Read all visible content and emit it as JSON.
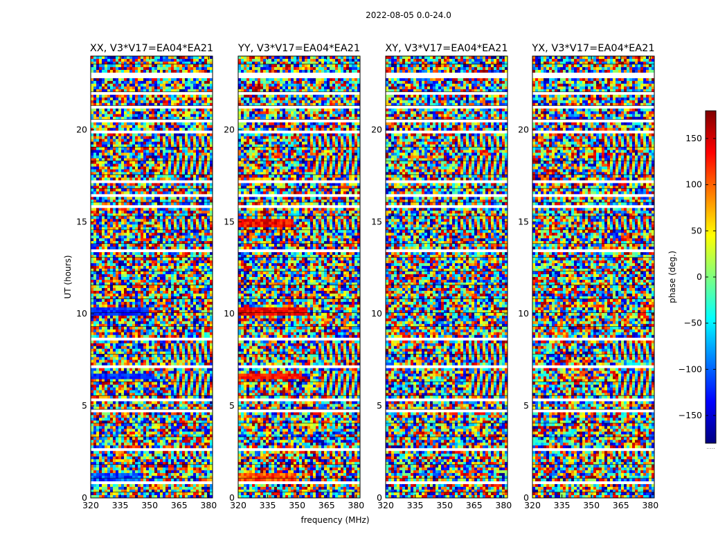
{
  "figure": {
    "suptitle": "2022-08-05 0.0-24.0"
  },
  "colors": {
    "jet": [
      "#00007f",
      "#0000ff",
      "#007fff",
      "#00ffff",
      "#7fff7f",
      "#ffff00",
      "#ff7f00",
      "#ff0000",
      "#7f0000"
    ],
    "masked_row": "#ffffff",
    "separator": "#000000"
  },
  "chart_data": {
    "type": "heatmap",
    "xlabel": "frequency (MHz)",
    "ylabel": "UT (hours)",
    "xlim": [
      320,
      382
    ],
    "ylim": [
      0,
      24
    ],
    "xticks": [
      "320",
      "335",
      "350",
      "365",
      "380"
    ],
    "xtick_values": [
      320,
      335,
      350,
      365,
      380
    ],
    "yticks": [
      "0",
      "5",
      "10",
      "15",
      "20"
    ],
    "ytick_values": [
      0,
      5,
      10,
      15,
      20
    ],
    "panels": [
      {
        "title": "XX, V3*V17=EA04*EA21",
        "bias": "blue"
      },
      {
        "title": "YY, V3*V17=EA04*EA21",
        "bias": "red"
      },
      {
        "title": "XY, V3*V17=EA04*EA21",
        "bias": "none"
      },
      {
        "title": "YX, V3*V17=EA04*EA21",
        "bias": "none"
      }
    ],
    "masked_hours": [
      [
        0.75,
        0.95
      ],
      [
        1.45,
        1.55
      ],
      [
        2.55,
        2.75
      ],
      [
        3.85,
        3.95
      ],
      [
        4.65,
        4.8
      ],
      [
        5.3,
        5.4
      ],
      [
        7.05,
        7.15
      ],
      [
        8.55,
        8.65
      ],
      [
        13.3,
        13.45
      ],
      [
        15.75,
        15.9
      ],
      [
        16.4,
        16.5
      ],
      [
        17.15,
        17.25
      ],
      [
        19.8,
        20.0
      ],
      [
        20.45,
        20.55
      ],
      [
        21.1,
        21.25
      ],
      [
        21.85,
        22.1
      ],
      [
        22.85,
        23.05
      ],
      [
        23.5,
        23.6
      ]
    ],
    "fringe_bands": [
      {
        "start": 2.2,
        "end": 2.6,
        "f_from": 360,
        "tilt": 1
      },
      {
        "start": 5.6,
        "end": 6.7,
        "f_from": 362,
        "tilt": -1
      },
      {
        "start": 7.5,
        "end": 8.4,
        "f_from": 360,
        "tilt": 1
      },
      {
        "start": 14.6,
        "end": 15.1,
        "f_from": 355,
        "tilt": 1
      },
      {
        "start": 17.5,
        "end": 18.6,
        "f_from": 358,
        "tilt": -1
      },
      {
        "start": 19.0,
        "end": 19.7,
        "f_from": 355,
        "tilt": 1
      }
    ],
    "colorbar": {
      "label": "phase (deg.)",
      "range": [
        -180,
        180
      ],
      "ticks": [
        "150",
        "100",
        "50",
        "0",
        "−50",
        "−100",
        "−150"
      ],
      "tick_values": [
        150,
        100,
        50,
        0,
        -50,
        -100,
        -150
      ],
      "footer": "....."
    }
  }
}
